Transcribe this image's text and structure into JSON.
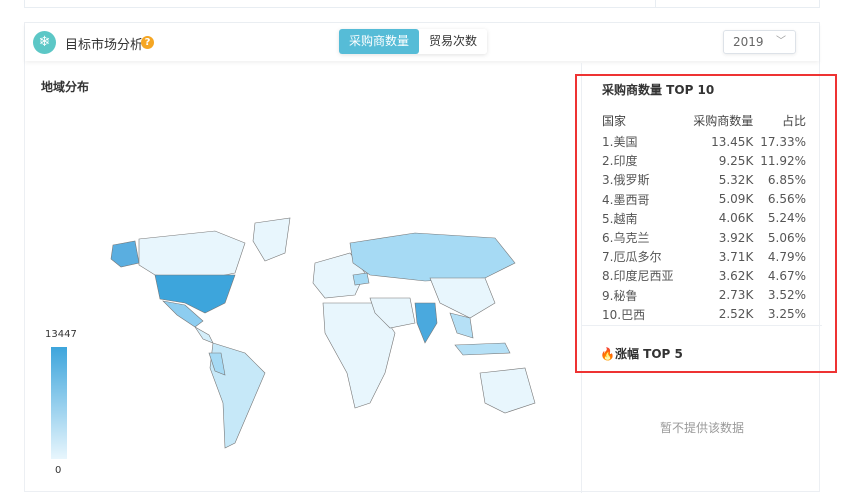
{
  "header": {
    "title": "目标市场分析",
    "help_icon": "question-icon",
    "tabs": [
      {
        "label": "采购商数量",
        "active": true
      },
      {
        "label": "贸易次数",
        "active": false
      }
    ],
    "year": "2019"
  },
  "map": {
    "title": "地域分布",
    "legend_max": "13447",
    "legend_min": "0",
    "colors": {
      "high": "#3da5dc",
      "low": "#e8f6fd"
    }
  },
  "top10": {
    "title": "采购商数量 TOP 10",
    "columns": [
      "国家",
      "采购商数量",
      "占比"
    ],
    "rows": [
      [
        "1.美国",
        "13.45K",
        "17.33%"
      ],
      [
        "2.印度",
        "9.25K",
        "11.92%"
      ],
      [
        "3.俄罗斯",
        "5.32K",
        "6.85%"
      ],
      [
        "4.墨西哥",
        "5.09K",
        "6.56%"
      ],
      [
        "5.越南",
        "4.06K",
        "5.24%"
      ],
      [
        "6.乌克兰",
        "3.92K",
        "5.06%"
      ],
      [
        "7.厄瓜多尔",
        "3.71K",
        "4.79%"
      ],
      [
        "8.印度尼西亚",
        "3.62K",
        "4.67%"
      ],
      [
        "9.秘鲁",
        "2.73K",
        "3.52%"
      ],
      [
        "10.巴西",
        "2.52K",
        "3.25%"
      ]
    ]
  },
  "rise": {
    "title": "涨幅 TOP 5",
    "empty": "暂不提供该数据"
  },
  "accent": "#56bcd7"
}
